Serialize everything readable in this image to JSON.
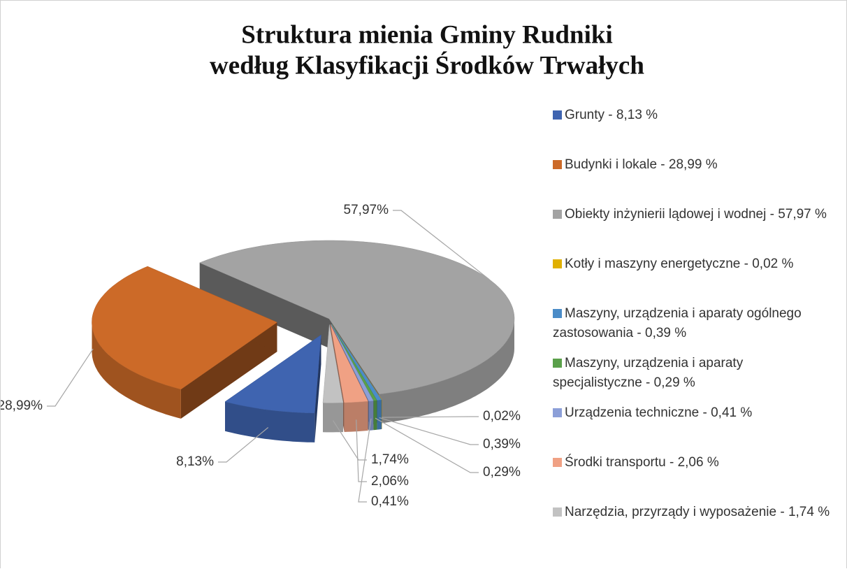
{
  "chart_data": {
    "type": "pie3d",
    "title": [
      "Struktura mienia Gminy Rudniki",
      "według Klasyfikacji Środków Trwałych"
    ],
    "categories": [
      "Grunty - 8,13 %",
      "Budynki i lokale - 28,99 %",
      "Obiekty inżynierii lądowej i wodnej - 57,97 %",
      "Kotły i maszyny energetyczne - 0,02 %",
      "Maszyny, urządzenia i aparaty ogólnego zastosowania - 0,39 %",
      "Maszyny, urządzenia i aparaty specjalistyczne - 0,29 %",
      "Urządzenia techniczne - 0,41 %",
      "Środki transportu - 2,06 %",
      "Narzędzia, przyrządy i wyposażenie - 1,74 %"
    ],
    "values": [
      8.13,
      28.99,
      57.97,
      0.02,
      0.39,
      0.29,
      0.41,
      2.06,
      1.74
    ],
    "value_labels": [
      "8,13%",
      "28,99%",
      "57,97%",
      "0,02%",
      "0,39%",
      "0,29%",
      "0,41%",
      "2,06%",
      "1,74%"
    ],
    "colors": [
      "#3f64b0",
      "#cc6a28",
      "#a3a3a3",
      "#e0b000",
      "#4b8cc8",
      "#5aa04a",
      "#8c9fd8",
      "#f0a184",
      "#c2c2c2"
    ],
    "legend": "right"
  }
}
